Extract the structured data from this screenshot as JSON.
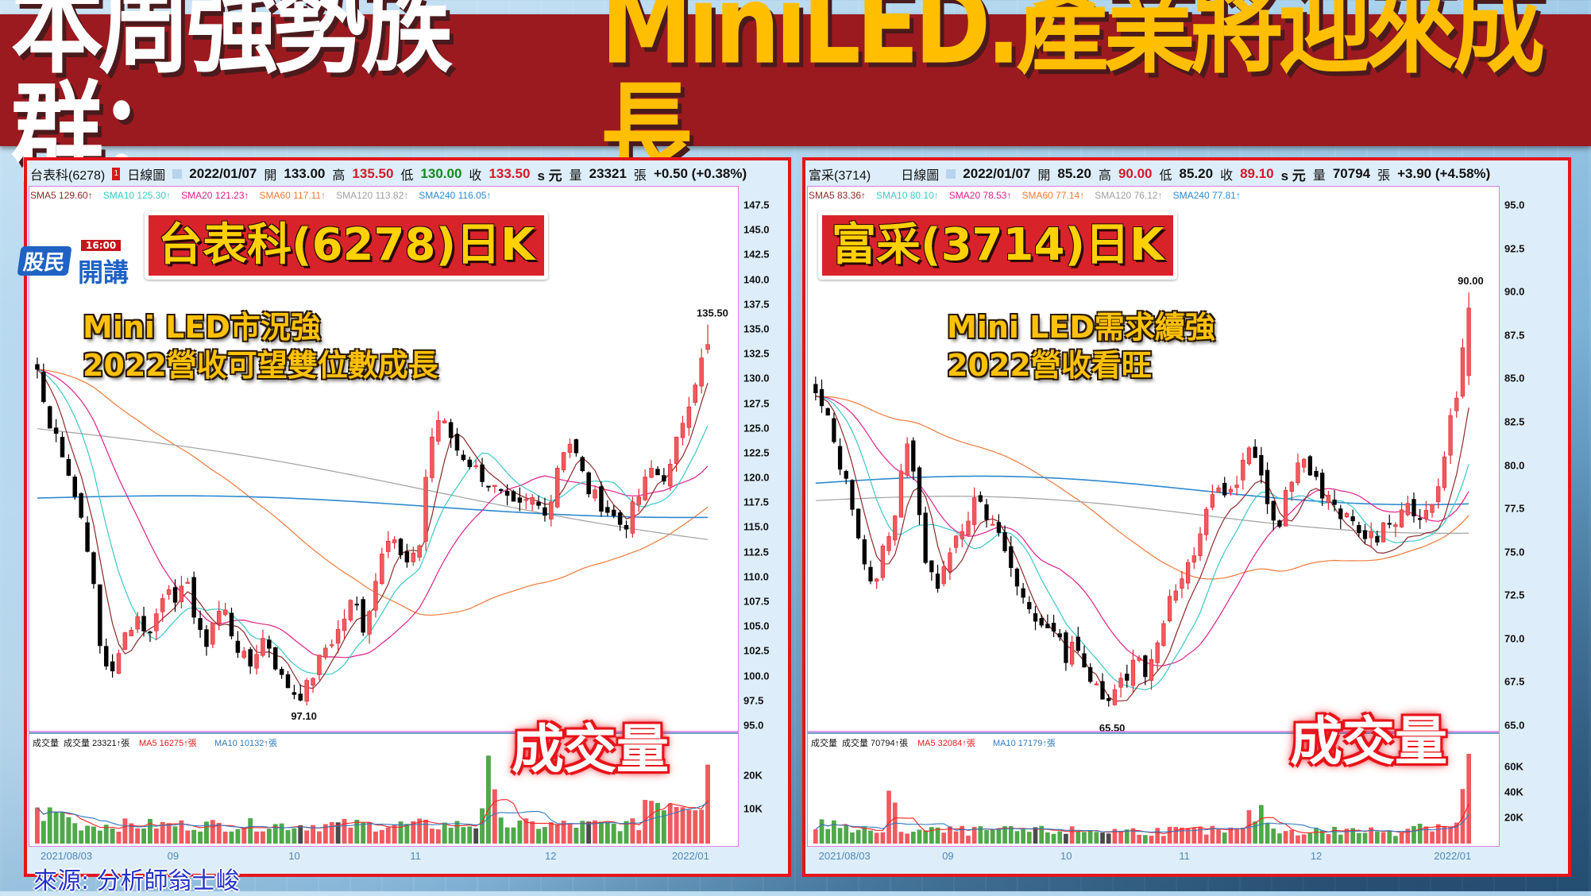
{
  "banner": {
    "title_white": "本周強勢族群：",
    "title_yellow": "MiniLED.產業將迎來成長"
  },
  "logo": {
    "brand": "股民",
    "time": "16:00",
    "show": "開講"
  },
  "source": "來源: 分析師翁士峻",
  "colors": {
    "up": "#f05a5f",
    "down": "#000000",
    "vol_up": "#f05a5f",
    "vol_down": "#4fa84a",
    "vol_flat": "#4a4a4a",
    "sma5": "#8b2a2a",
    "sma10": "#3cc8c8",
    "sma20": "#e0208a",
    "sma60": "#f07a3a",
    "sma120": "#a0a0a0",
    "sma240": "#2e8ad0",
    "vma5": "#ff2020",
    "vma10": "#2e7ac0"
  },
  "charts": [
    {
      "id": "6278",
      "header": {
        "name": "台表科(6278)",
        "badge": "1",
        "type": "日線圖",
        "date": "2022/01/07",
        "open_label": "開",
        "open": "133.00",
        "high_label": "高",
        "high": "135.50",
        "low_label": "低",
        "low": "130.00",
        "close_label": "收",
        "close": "133.50",
        "unit": "s 元",
        "vol_label": "量",
        "volume": "23321",
        "vol_unit": "張",
        "change": "+0.50 (+0.38%)"
      },
      "sma": [
        {
          "label": "SMA5 129.60↑",
          "color": "#8b2a2a"
        },
        {
          "label": "SMA10 125.30↑",
          "color": "#3cc8c8"
        },
        {
          "label": "SMA20 121.23↑",
          "color": "#e0208a"
        },
        {
          "label": "SMA60 117.11↑",
          "color": "#f07a3a"
        },
        {
          "label": "SMA120 113.82↑",
          "color": "#a0a0a0"
        },
        {
          "label": "SMA240 116.05↑",
          "color": "#2e8ad0"
        }
      ],
      "title_label": "台表科(6278)日K",
      "note_lines": [
        "Mini LED市況強",
        "2022營收可望雙位數成長"
      ],
      "volume_label": "成交量",
      "vol_header": [
        {
          "label": "成交量",
          "color": "#111"
        },
        {
          "label": "成交量 23321↑張",
          "color": "#111"
        },
        {
          "label": "MA5 16275↑張",
          "color": "#e01c1c"
        },
        {
          "label": "MA10 10132↑張",
          "color": "#2e7ac0"
        }
      ],
      "y_ticks": [
        "147.5",
        "145.0",
        "142.5",
        "140.0",
        "137.5",
        "135.0",
        "132.5",
        "130.0",
        "127.5",
        "125.0",
        "122.5",
        "120.0",
        "117.5",
        "115.0",
        "112.5",
        "110.0",
        "107.5",
        "105.0",
        "102.5",
        "100.0",
        "97.5",
        "95.0"
      ],
      "vol_ticks": [
        "20K",
        "10K"
      ],
      "x_ticks": [
        "2021/08/03",
        "09",
        "10",
        "11",
        "12",
        "2022/01"
      ],
      "high_marker": "135.50",
      "low_marker": "97.10"
    },
    {
      "id": "3714",
      "header": {
        "name": "富采(3714)",
        "badge": "",
        "type": "日線圖",
        "date": "2022/01/07",
        "open_label": "開",
        "open": "85.20",
        "high_label": "高",
        "high": "90.00",
        "low_label": "低",
        "low": "85.20",
        "close_label": "收",
        "close": "89.10",
        "unit": "s 元",
        "vol_label": "量",
        "volume": "70794",
        "vol_unit": "張",
        "change": "+3.90 (+4.58%)"
      },
      "sma": [
        {
          "label": "SMA5 83.36↑",
          "color": "#8b2a2a"
        },
        {
          "label": "SMA10 80.10↑",
          "color": "#3cc8c8"
        },
        {
          "label": "SMA20 78.53↑",
          "color": "#e0208a"
        },
        {
          "label": "SMA60 77.14↑",
          "color": "#f07a3a"
        },
        {
          "label": "SMA120 76.12↑",
          "color": "#a0a0a0"
        },
        {
          "label": "SMA240 77.81↑",
          "color": "#2e8ad0"
        }
      ],
      "title_label": "富采(3714)日K",
      "note_lines": [
        "Mini LED需求續強",
        "2022營收看旺"
      ],
      "volume_label": "成交量",
      "vol_header": [
        {
          "label": "成交量",
          "color": "#111"
        },
        {
          "label": "成交量 70794↑張",
          "color": "#111"
        },
        {
          "label": "MA5 32084↑張",
          "color": "#e01c1c"
        },
        {
          "label": "MA10 17179↑張",
          "color": "#2e7ac0"
        }
      ],
      "y_ticks": [
        "95.0",
        "92.5",
        "90.0",
        "87.5",
        "85.0",
        "82.5",
        "80.0",
        "77.5",
        "75.0",
        "72.5",
        "70.0",
        "67.5",
        "65.0"
      ],
      "vol_ticks": [
        "60K",
        "40K",
        "20K"
      ],
      "x_ticks": [
        "2021/08/03",
        "09",
        "10",
        "11",
        "12",
        "2022/01"
      ],
      "high_marker": "90.00",
      "low_marker": "65.50"
    }
  ],
  "chart_data": [
    {
      "type": "candlestick",
      "title": "台表科(6278)日K",
      "x_range": [
        "2021/08/03",
        "2022/01/07"
      ],
      "ylim": [
        95.0,
        147.5
      ],
      "close_path": [
        131,
        126,
        125,
        121,
        119,
        114,
        110,
        101,
        100,
        104,
        105,
        106,
        104,
        107,
        110,
        106,
        111,
        105,
        103,
        106,
        107,
        104,
        102,
        101,
        104,
        103,
        100,
        99,
        98,
        99,
        101,
        103,
        104,
        106,
        108,
        105,
        108,
        113,
        115,
        112,
        111,
        113,
        123,
        126,
        125,
        123,
        122,
        121,
        120,
        119,
        118,
        117,
        117,
        118,
        117,
        117,
        122,
        124,
        122,
        119,
        118,
        117,
        116,
        115,
        117,
        119,
        121,
        120,
        121,
        125,
        128,
        131,
        133.5
      ],
      "high": 135.5,
      "low": 97.1,
      "sma_last": {
        "SMA5": 129.6,
        "SMA10": 125.3,
        "SMA20": 121.23,
        "SMA60": 117.11,
        "SMA120": 113.82,
        "SMA240": 116.05
      },
      "volume_last": 23321,
      "volume_ma5": 16275,
      "volume_ma10": 10132,
      "volume_ticks": [
        "10K",
        "20K"
      ]
    },
    {
      "type": "candlestick",
      "title": "富采(3714)日K",
      "x_range": [
        "2021/08/03",
        "2022/01/07"
      ],
      "ylim": [
        65.0,
        95.0
      ],
      "close_path": [
        84,
        83,
        81,
        79,
        77,
        74,
        73,
        76,
        77,
        82,
        79,
        74,
        73,
        75,
        76,
        77,
        78,
        77,
        76,
        75,
        73,
        72,
        71,
        71,
        70,
        69,
        70,
        68,
        67,
        66,
        68,
        68,
        69,
        68,
        70,
        72,
        73,
        74,
        75,
        78,
        79,
        78,
        79,
        81,
        80,
        78,
        76,
        79,
        80,
        80,
        79,
        78,
        77,
        77,
        76,
        76,
        76,
        77,
        77,
        78,
        77,
        77,
        79,
        82,
        85,
        89.1
      ],
      "high": 90.0,
      "low": 65.5,
      "sma_last": {
        "SMA5": 83.36,
        "SMA10": 80.1,
        "SMA20": 78.53,
        "SMA60": 77.14,
        "SMA120": 76.12,
        "SMA240": 77.81
      },
      "volume_last": 70794,
      "volume_ma5": 32084,
      "volume_ma10": 17179,
      "volume_ticks": [
        "20K",
        "40K",
        "60K"
      ]
    }
  ]
}
